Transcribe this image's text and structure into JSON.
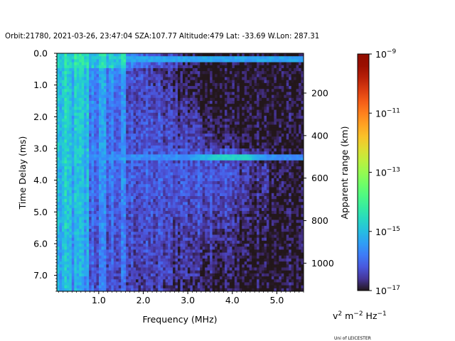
{
  "chart_data": {
    "type": "heatmap",
    "title": "Orbit:21780, 2021-03-26, 23:47:04 SZA:107.77 Altitude:479 Lat: -33.69 W.Lon: 287.31",
    "xlabel": "Frequency (MHz)",
    "ylabel": "Time Delay (ms)",
    "y2label": "Apparent range (km)",
    "xlim": [
      0.06,
      5.6
    ],
    "ylim": [
      7.5,
      0.0
    ],
    "xticks": [
      "1.0",
      "2.0",
      "3.0",
      "4.0",
      "5.0"
    ],
    "xtick_values": [
      1,
      2,
      3,
      4,
      5
    ],
    "yticks": [
      "0.0",
      "1.0",
      "2.0",
      "3.0",
      "4.0",
      "5.0",
      "6.0",
      "7.0"
    ],
    "ytick_values": [
      0,
      1,
      2,
      3,
      4,
      5,
      6,
      7
    ],
    "y2ticks": [
      "200",
      "400",
      "600",
      "800",
      "1000"
    ],
    "y2tick_values": [
      200,
      400,
      600,
      800,
      1000
    ],
    "colorbar": {
      "label_base": "v",
      "label_parts": [
        "2",
        " m",
        "−2",
        " Hz",
        "−1"
      ],
      "colormap": "turbo",
      "log10_range": [
        -17,
        -9
      ],
      "ticks": [
        "−17",
        "−15",
        "−13",
        "−11",
        "−9"
      ],
      "tick_values": [
        -17,
        -15,
        -13,
        -11,
        -9
      ]
    },
    "grid_freq_edges_mhz": [
      0,
      0.4,
      0.8,
      1.2,
      1.6,
      2.0,
      2.4,
      2.8,
      3.2,
      3.6,
      4.0,
      4.4,
      4.8,
      5.2,
      5.6
    ],
    "grid_time_edges_ms": [
      0,
      0.5,
      1.0,
      1.5,
      2.0,
      2.5,
      3.0,
      3.5,
      4.0,
      4.5,
      5.0,
      5.5,
      6.0,
      6.5,
      7.0,
      7.5
    ],
    "log10_values": [
      [
        -14.8,
        -14.6,
        -14.8,
        -14.8,
        -15.8,
        -16.2,
        -16.5,
        -16.8,
        -17,
        -17,
        -17,
        -17,
        -17,
        -17
      ],
      [
        -15.0,
        -14.9,
        -15.5,
        -15.6,
        -16.2,
        -16.5,
        -16.7,
        -16.9,
        -17,
        -17,
        -17,
        -17,
        -17,
        -17
      ],
      [
        -15.0,
        -15.0,
        -15.6,
        -15.8,
        -16.3,
        -16.4,
        -16.6,
        -16.8,
        -17,
        -17,
        -17,
        -17,
        -17,
        -17
      ],
      [
        -15.0,
        -15.0,
        -15.6,
        -15.9,
        -16.3,
        -16.4,
        -16.5,
        -16.6,
        -16.9,
        -17,
        -17,
        -17,
        -17,
        -17
      ],
      [
        -15.0,
        -15.1,
        -15.7,
        -15.9,
        -16.3,
        -16.3,
        -16.4,
        -16.5,
        -16.7,
        -16.9,
        -17,
        -17,
        -17,
        -17
      ],
      [
        -15.0,
        -15.1,
        -15.7,
        -15.9,
        -16.2,
        -16.3,
        -16.4,
        -16.4,
        -16.5,
        -16.7,
        -16.9,
        -17,
        -17,
        -17
      ],
      [
        -15.0,
        -15.1,
        -15.7,
        -15.9,
        -16.2,
        -16.2,
        -16.2,
        -16.2,
        -16.2,
        -16.3,
        -16.5,
        -16.7,
        -16.9,
        -17
      ],
      [
        -15.1,
        -15.2,
        -15.8,
        -15.9,
        -16.1,
        -16.2,
        -16.2,
        -16.2,
        -16.1,
        -16.2,
        -16.4,
        -16.6,
        -16.9,
        -17
      ],
      [
        -15.1,
        -15.2,
        -15.8,
        -16.0,
        -16.2,
        -16.2,
        -16.2,
        -16.2,
        -16.2,
        -16.3,
        -16.5,
        -16.7,
        -16.9,
        -17
      ],
      [
        -15.1,
        -15.2,
        -15.9,
        -16.0,
        -16.2,
        -16.3,
        -16.3,
        -16.3,
        -16.3,
        -16.4,
        -16.6,
        -16.8,
        -17,
        -17
      ],
      [
        -15.1,
        -15.3,
        -15.9,
        -16.1,
        -16.3,
        -16.3,
        -16.4,
        -16.4,
        -16.4,
        -16.5,
        -16.7,
        -16.9,
        -17,
        -17
      ],
      [
        -15.2,
        -15.3,
        -16.0,
        -16.1,
        -16.3,
        -16.4,
        -16.4,
        -16.5,
        -16.5,
        -16.6,
        -16.8,
        -16.9,
        -17,
        -17
      ],
      [
        -15.2,
        -15.4,
        -16.0,
        -16.2,
        -16.4,
        -16.4,
        -16.5,
        -16.5,
        -16.6,
        -16.7,
        -16.8,
        -17,
        -17,
        -17
      ],
      [
        -15.2,
        -15.4,
        -16.1,
        -16.2,
        -16.4,
        -16.5,
        -16.5,
        -16.6,
        -16.7,
        -16.8,
        -16.9,
        -17,
        -17,
        -17
      ],
      [
        -15.3,
        -15.5,
        -16.1,
        -16.3,
        -16.5,
        -16.5,
        -16.6,
        -16.7,
        -16.8,
        -16.9,
        -17,
        -17,
        -17,
        -17
      ]
    ],
    "horizontal_features": [
      {
        "time_ms": 0.2,
        "log10_peak": -15.3,
        "note_freq_range_mhz": [
          1.6,
          5.6
        ]
      },
      {
        "time_ms": 3.3,
        "log10_peak": -14.5,
        "note_freq_range_mhz": [
          0.06,
          5.6
        ]
      }
    ]
  },
  "footer": {
    "credit": "Uni of LEICESTER"
  }
}
